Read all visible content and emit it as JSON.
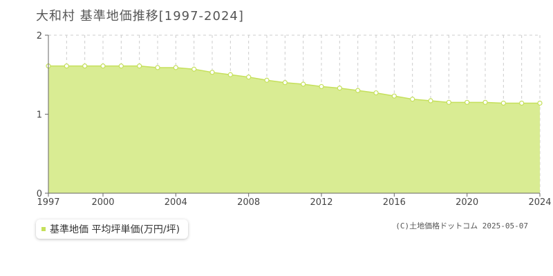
{
  "header": {
    "title": "大和村 基準地価推移[1997-2024]"
  },
  "legend": {
    "label": "基準地価 平均坪単価(万円/坪)"
  },
  "footer": {
    "credit": "(C)土地価格ドットコム 2025-05-07"
  },
  "colors": {
    "fill": "#d9ec93",
    "line": "#c5e05b",
    "marker_fill": "#ffffff",
    "grid": "#cccccc",
    "axis": "#666666"
  },
  "chart_data": {
    "type": "area",
    "title": "大和村 基準地価推移[1997-2024]",
    "xlabel": "",
    "ylabel": "",
    "x": [
      1997,
      1998,
      1999,
      2000,
      2001,
      2002,
      2003,
      2004,
      2005,
      2006,
      2007,
      2008,
      2009,
      2010,
      2011,
      2012,
      2013,
      2014,
      2015,
      2016,
      2017,
      2018,
      2019,
      2020,
      2021,
      2022,
      2023,
      2024
    ],
    "series": [
      {
        "name": "基準地価 平均坪単価(万円/坪)",
        "values": [
          1.61,
          1.61,
          1.61,
          1.61,
          1.61,
          1.61,
          1.59,
          1.59,
          1.57,
          1.53,
          1.5,
          1.47,
          1.43,
          1.4,
          1.38,
          1.35,
          1.33,
          1.3,
          1.27,
          1.23,
          1.19,
          1.17,
          1.15,
          1.15,
          1.15,
          1.14,
          1.14,
          1.14
        ]
      }
    ],
    "ylim": [
      0,
      2
    ],
    "xlim": [
      1997,
      2024
    ],
    "yticks": [
      0,
      1,
      2
    ],
    "xticks": [
      1997,
      2000,
      2004,
      2008,
      2012,
      2016,
      2020,
      2024
    ],
    "grid": true,
    "legend_position": "bottom-left"
  }
}
